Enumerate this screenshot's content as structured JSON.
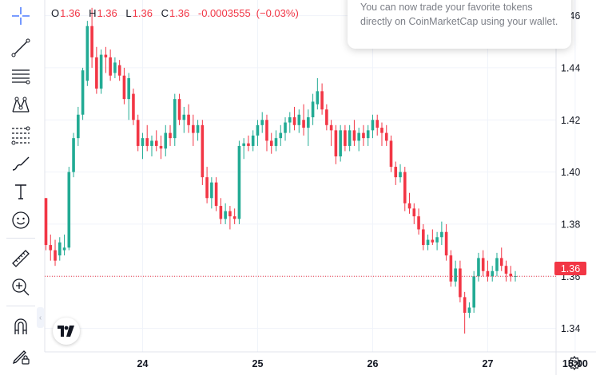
{
  "ohlc": {
    "open_label": "O",
    "open": "1.36",
    "high_label": "H",
    "high": "1.36",
    "low_label": "L",
    "low": "1.36",
    "close_label": "C",
    "close": "1.36",
    "change": "-0.0003555",
    "change_pct": "(−0.03%)"
  },
  "notice": {
    "text": "You can now trade your favorite tokens directly on CoinMarketCap using your wallet."
  },
  "price_axis": {
    "current_price_label": "1.36"
  },
  "toolbar": {
    "tools": [
      "crosshair-icon",
      "trend-line-icon",
      "horizontal-lines-icon",
      "pattern-icon",
      "fib-icon",
      "brush-icon",
      "text-icon",
      "emoji-icon",
      "ruler-icon",
      "zoom-in-icon",
      "magnet-icon",
      "lock-draw-icon"
    ]
  },
  "colors": {
    "up": "#22ab94",
    "down": "#f23645",
    "grid": "#f0f3fa",
    "axis_text": "#131722"
  },
  "chart_data": {
    "type": "candlestick",
    "xlabel": "",
    "ylabel": "",
    "ylim": [
      1.331,
      1.466
    ],
    "y_ticks": [
      1.34,
      1.36,
      1.38,
      1.4,
      1.42,
      1.44,
      1.46
    ],
    "y_tick_labels": [
      "1.34",
      "1.36",
      "1.38",
      "1.40",
      "1.42",
      "1.44",
      "1.46"
    ],
    "x_tick_labels": [
      "24",
      "25",
      "26",
      "27",
      "15:00"
    ],
    "x_tick_bar_index": [
      21,
      46,
      71,
      96,
      115
    ],
    "current_price": 1.36,
    "candles": [
      [
        1.39,
        1.39,
        1.37,
        1.372
      ],
      [
        1.372,
        1.376,
        1.366,
        1.37
      ],
      [
        1.37,
        1.374,
        1.364,
        1.366
      ],
      [
        1.368,
        1.375,
        1.366,
        1.373
      ],
      [
        1.37,
        1.376,
        1.368,
        1.371
      ],
      [
        1.371,
        1.402,
        1.37,
        1.4
      ],
      [
        1.4,
        1.415,
        1.398,
        1.413
      ],
      [
        1.413,
        1.425,
        1.41,
        1.422
      ],
      [
        1.422,
        1.44,
        1.42,
        1.439
      ],
      [
        1.435,
        1.458,
        1.433,
        1.456
      ],
      [
        1.456,
        1.463,
        1.44,
        1.444
      ],
      [
        1.444,
        1.448,
        1.43,
        1.432
      ],
      [
        1.432,
        1.447,
        1.43,
        1.445
      ],
      [
        1.445,
        1.448,
        1.438,
        1.444
      ],
      [
        1.444,
        1.447,
        1.435,
        1.437
      ],
      [
        1.438,
        1.444,
        1.436,
        1.442
      ],
      [
        1.441,
        1.443,
        1.435,
        1.437
      ],
      [
        1.437,
        1.44,
        1.426,
        1.428
      ],
      [
        1.428,
        1.438,
        1.42,
        1.436
      ],
      [
        1.43,
        1.432,
        1.418,
        1.42
      ],
      [
        1.42,
        1.422,
        1.408,
        1.41
      ],
      [
        1.41,
        1.415,
        1.405,
        1.413
      ],
      [
        1.413,
        1.418,
        1.408,
        1.41
      ],
      [
        1.41,
        1.414,
        1.406,
        1.412
      ],
      [
        1.412,
        1.416,
        1.408,
        1.41
      ],
      [
        1.41,
        1.414,
        1.405,
        1.409
      ],
      [
        1.409,
        1.418,
        1.406,
        1.415
      ],
      [
        1.415,
        1.418,
        1.41,
        1.413
      ],
      [
        1.413,
        1.43,
        1.41,
        1.428
      ],
      [
        1.428,
        1.43,
        1.418,
        1.42
      ],
      [
        1.42,
        1.425,
        1.415,
        1.422
      ],
      [
        1.422,
        1.426,
        1.415,
        1.418
      ],
      [
        1.418,
        1.422,
        1.41,
        1.415
      ],
      [
        1.415,
        1.42,
        1.412,
        1.418
      ],
      [
        1.418,
        1.42,
        1.395,
        1.398
      ],
      [
        1.398,
        1.402,
        1.388,
        1.39
      ],
      [
        1.39,
        1.398,
        1.386,
        1.396
      ],
      [
        1.396,
        1.398,
        1.385,
        1.387
      ],
      [
        1.387,
        1.39,
        1.38,
        1.382
      ],
      [
        1.382,
        1.388,
        1.38,
        1.385
      ],
      [
        1.385,
        1.387,
        1.378,
        1.383
      ],
      [
        1.383,
        1.386,
        1.38,
        1.382
      ],
      [
        1.382,
        1.412,
        1.38,
        1.41
      ],
      [
        1.41,
        1.413,
        1.405,
        1.411
      ],
      [
        1.411,
        1.414,
        1.408,
        1.41
      ],
      [
        1.41,
        1.416,
        1.408,
        1.414
      ],
      [
        1.414,
        1.42,
        1.41,
        1.418
      ],
      [
        1.418,
        1.423,
        1.415,
        1.42
      ],
      [
        1.42,
        1.422,
        1.408,
        1.412
      ],
      [
        1.412,
        1.415,
        1.407,
        1.41
      ],
      [
        1.41,
        1.416,
        1.408,
        1.413
      ],
      [
        1.413,
        1.418,
        1.41,
        1.415
      ],
      [
        1.415,
        1.421,
        1.412,
        1.419
      ],
      [
        1.419,
        1.423,
        1.415,
        1.421
      ],
      [
        1.421,
        1.425,
        1.416,
        1.418
      ],
      [
        1.418,
        1.424,
        1.415,
        1.422
      ],
      [
        1.42,
        1.426,
        1.414,
        1.417
      ],
      [
        1.417,
        1.424,
        1.41,
        1.421
      ],
      [
        1.421,
        1.43,
        1.418,
        1.427
      ],
      [
        1.426,
        1.436,
        1.424,
        1.431
      ],
      [
        1.431,
        1.434,
        1.422,
        1.424
      ],
      [
        1.424,
        1.426,
        1.416,
        1.418
      ],
      [
        1.418,
        1.42,
        1.41,
        1.416
      ],
      [
        1.416,
        1.418,
        1.403,
        1.406
      ],
      [
        1.406,
        1.418,
        1.404,
        1.416
      ],
      [
        1.416,
        1.418,
        1.408,
        1.41
      ],
      [
        1.41,
        1.418,
        1.408,
        1.416
      ],
      [
        1.416,
        1.42,
        1.41,
        1.412
      ],
      [
        1.412,
        1.417,
        1.408,
        1.415
      ],
      [
        1.415,
        1.418,
        1.41,
        1.413
      ],
      [
        1.413,
        1.418,
        1.41,
        1.416
      ],
      [
        1.416,
        1.422,
        1.413,
        1.42
      ],
      [
        1.42,
        1.422,
        1.414,
        1.417
      ],
      [
        1.417,
        1.419,
        1.41,
        1.415
      ],
      [
        1.415,
        1.418,
        1.41,
        1.412
      ],
      [
        1.412,
        1.414,
        1.4,
        1.402
      ],
      [
        1.402,
        1.404,
        1.395,
        1.398
      ],
      [
        1.398,
        1.403,
        1.396,
        1.4
      ],
      [
        1.4,
        1.402,
        1.385,
        1.388
      ],
      [
        1.388,
        1.392,
        1.384,
        1.386
      ],
      [
        1.386,
        1.388,
        1.38,
        1.383
      ],
      [
        1.383,
        1.386,
        1.376,
        1.378
      ],
      [
        1.378,
        1.38,
        1.37,
        1.372
      ],
      [
        1.372,
        1.376,
        1.37,
        1.374
      ],
      [
        1.374,
        1.378,
        1.372,
        1.373
      ],
      [
        1.373,
        1.377,
        1.37,
        1.375
      ],
      [
        1.375,
        1.381,
        1.372,
        1.377
      ],
      [
        1.377,
        1.38,
        1.366,
        1.368
      ],
      [
        1.368,
        1.37,
        1.356,
        1.358
      ],
      [
        1.358,
        1.366,
        1.356,
        1.363
      ],
      [
        1.363,
        1.366,
        1.35,
        1.352
      ],
      [
        1.352,
        1.354,
        1.338,
        1.346
      ],
      [
        1.346,
        1.35,
        1.344,
        1.348
      ],
      [
        1.348,
        1.362,
        1.346,
        1.36
      ],
      [
        1.36,
        1.369,
        1.358,
        1.367
      ],
      [
        1.367,
        1.37,
        1.36,
        1.362
      ],
      [
        1.362,
        1.366,
        1.358,
        1.36
      ],
      [
        1.36,
        1.364,
        1.358,
        1.362
      ],
      [
        1.362,
        1.369,
        1.36,
        1.367
      ],
      [
        1.367,
        1.371,
        1.362,
        1.364
      ],
      [
        1.364,
        1.366,
        1.358,
        1.361
      ],
      [
        1.361,
        1.364,
        1.358,
        1.36
      ],
      [
        1.36,
        1.362,
        1.358,
        1.3601
      ]
    ]
  }
}
